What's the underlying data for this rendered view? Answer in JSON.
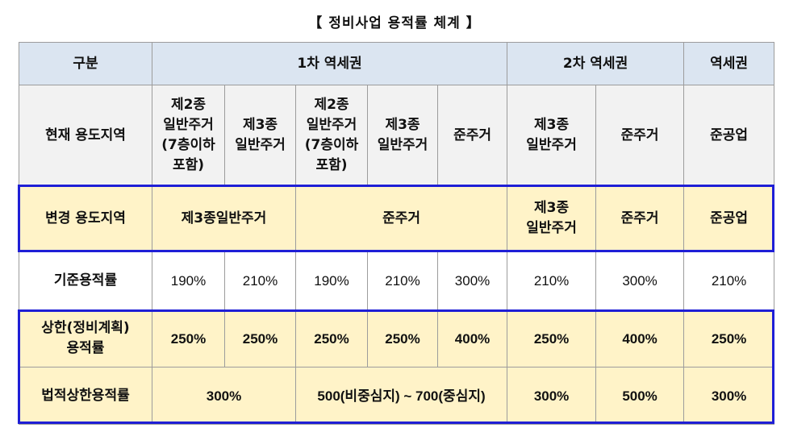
{
  "title": "【 정비사업 용적률 체계 】",
  "header": {
    "category": "구분",
    "zone1": "1차 역세권",
    "zone2": "2차 역세권",
    "zone3": "역세권"
  },
  "current": {
    "label": "현재 용도지역",
    "cells": [
      "제2종\n일반주거\n(7층이하\n포함)",
      "제3종\n일반주거",
      "제2종\n일반주거\n(7층이하\n포함)",
      "제3종\n일반주거",
      "준주거",
      "제3종\n일반주거",
      "준주거",
      "준공업"
    ]
  },
  "changed": {
    "label": "변경 용도지역",
    "cells": [
      "제3종일반주거",
      "준주거",
      "제3종\n일반주거",
      "준주거",
      "준공업"
    ]
  },
  "base_far": {
    "label": "기준용적률",
    "cells": [
      "190%",
      "210%",
      "190%",
      "210%",
      "300%",
      "210%",
      "300%",
      "210%"
    ]
  },
  "upper_far": {
    "label": "상한(정비계획)\n용적률",
    "cells": [
      "250%",
      "250%",
      "250%",
      "250%",
      "400%",
      "250%",
      "400%",
      "250%"
    ]
  },
  "legal_far": {
    "label": "법적상한용적률",
    "cells": [
      "300%",
      "500(비중심지) ~ 700(중심지)",
      "300%",
      "500%",
      "300%"
    ]
  },
  "colors": {
    "header_bg": "#dbe5f1",
    "current_bg": "#f2f2f2",
    "highlight_bg": "#fff3c8",
    "box_border": "#1f1fd6"
  }
}
